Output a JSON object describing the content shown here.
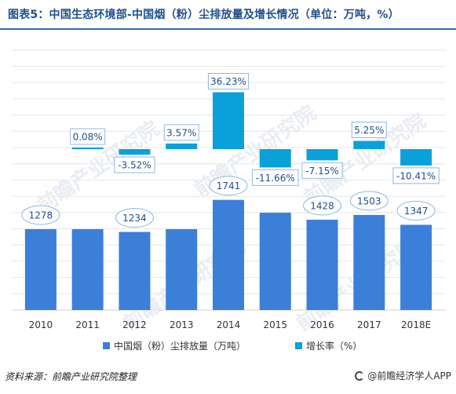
{
  "title": "图表5：中国生态环境部-中国烟（粉）尘排放量及增长情况（单位：万吨，%）",
  "source": "资料来源：前瞻产业研究院整理",
  "brand": "@前瞻经济学人APP",
  "watermark": "前瞻产业研究院",
  "colors": {
    "bar": "#3b7fd9",
    "growth": "#0aa0da",
    "label_text": "#1f4e8c",
    "bubble_fill": "#ffffff",
    "bubble_stroke": "#8fb8e0",
    "grid": "#e6e6e6"
  },
  "chart_data": {
    "type": "bar",
    "categories": [
      "2010",
      "2011",
      "2012",
      "2013",
      "2014",
      "2015",
      "2016",
      "2017",
      "2018E"
    ],
    "series": [
      {
        "name": "中国烟（粉）尘排放量（万吨）",
        "values": [
          1278,
          1278,
          1234,
          1278,
          1741,
          1538,
          1428,
          1503,
          1347
        ],
        "labels": [
          "1278",
          null,
          "1234",
          null,
          "1741",
          null,
          "1428",
          "1503",
          "1347"
        ]
      },
      {
        "name": "增长率（%）",
        "values": [
          null,
          0.08,
          -3.52,
          3.57,
          36.23,
          -11.66,
          -7.15,
          5.25,
          -10.41
        ],
        "labels": [
          null,
          "0.08%",
          "-3.52%",
          "3.57%",
          "36.23%",
          "-11.66%",
          "-7.15%",
          "5.25%",
          "-10.41%"
        ]
      }
    ],
    "legend_position": "bottom",
    "grid": true
  }
}
